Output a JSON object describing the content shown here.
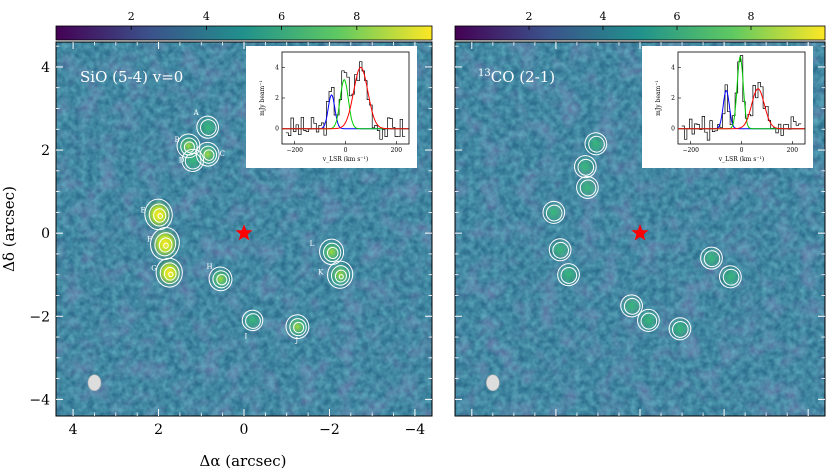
{
  "chart_data": [
    {
      "type": "heatmap",
      "title": "SiO (5-4) v=0",
      "xlabel": "Δα (arcsec)",
      "ylabel": "Δδ (arcsec)",
      "xlim": [
        4.4,
        -4.4
      ],
      "ylim": [
        -4.4,
        4.6
      ],
      "x_ticks": [
        "4",
        "2",
        "0",
        "−2",
        "−4"
      ],
      "y_ticks": [
        "4",
        "2",
        "0",
        "−2",
        "−4"
      ],
      "colorbar": {
        "range": [
          0,
          10
        ],
        "ticks": [
          "2",
          "4",
          "6",
          "8"
        ]
      },
      "colormap": [
        "#440154",
        "#3b528b",
        "#21918c",
        "#5ec962",
        "#fde725"
      ],
      "star": {
        "x": 0,
        "y": 0,
        "color": "#ff0000"
      },
      "beam": {
        "x": 3.5,
        "y": -3.6
      },
      "components": [
        {
          "label": "A",
          "x": 0.85,
          "y": 2.55,
          "peak": 4
        },
        {
          "label": "B",
          "x": 1.3,
          "y": 2.1,
          "peak": 5
        },
        {
          "label": "C",
          "x": 0.85,
          "y": 1.9,
          "peak": 5
        },
        {
          "label": "D",
          "x": 1.2,
          "y": 1.75,
          "peak": 4
        },
        {
          "label": "E",
          "x": 2.0,
          "y": 0.45,
          "peak": 9
        },
        {
          "label": "F",
          "x": 1.85,
          "y": -0.25,
          "peak": 10
        },
        {
          "label": "G",
          "x": 1.75,
          "y": -0.95,
          "peak": 8
        },
        {
          "label": "H",
          "x": 0.55,
          "y": -1.1,
          "peak": 5
        },
        {
          "label": "I",
          "x": -0.2,
          "y": -2.1,
          "peak": 3
        },
        {
          "label": "J",
          "x": -1.25,
          "y": -2.25,
          "peak": 5
        },
        {
          "label": "K",
          "x": -2.25,
          "y": -1.0,
          "peak": 7
        },
        {
          "label": "L",
          "x": -2.05,
          "y": -0.45,
          "peak": 6
        }
      ],
      "inset": {
        "xlabel": "v_LSR (km s⁻¹)",
        "ylabel": "mJy beam⁻¹",
        "xlim": [
          -250,
          250
        ],
        "ylim": [
          -1,
          5
        ],
        "x_ticks": [
          "−200",
          "0",
          "200"
        ],
        "y_ticks": [
          "0",
          "2",
          "4"
        ],
        "fits": [
          {
            "color": "#0000ff",
            "center": -55,
            "amp": 2.2,
            "width": 13
          },
          {
            "color": "#00cc00",
            "center": -5,
            "amp": 3.2,
            "width": 16
          },
          {
            "color": "#ff0000",
            "center": 60,
            "amp": 4.0,
            "width": 28
          }
        ]
      }
    },
    {
      "type": "heatmap",
      "title": "13CO (2-1)",
      "title_sup": "13",
      "title_main": "CO (2-1)",
      "xlim": [
        4.4,
        -4.4
      ],
      "ylim": [
        -4.4,
        4.6
      ],
      "colorbar": {
        "range": [
          0,
          10
        ],
        "ticks": [
          "2",
          "4",
          "6",
          "8"
        ]
      },
      "star": {
        "x": 0,
        "y": 0,
        "color": "#ff0000"
      },
      "beam": {
        "x": 3.5,
        "y": -3.6
      },
      "components": [
        {
          "x": 1.05,
          "y": 2.15
        },
        {
          "x": 1.3,
          "y": 1.6
        },
        {
          "x": 1.25,
          "y": 1.1
        },
        {
          "x": 2.05,
          "y": 0.5
        },
        {
          "x": 1.9,
          "y": -0.4
        },
        {
          "x": 1.7,
          "y": -1.0
        },
        {
          "x": -1.7,
          "y": -0.6
        },
        {
          "x": -2.15,
          "y": -1.05
        },
        {
          "x": -0.2,
          "y": -2.1
        },
        {
          "x": 0.2,
          "y": -1.75
        },
        {
          "x": -0.95,
          "y": -2.3
        }
      ],
      "inset": {
        "xlim": [
          -250,
          250
        ],
        "ylim": [
          -1,
          5
        ],
        "x_ticks": [
          "−200",
          "0",
          "200"
        ],
        "y_ticks": [
          "0",
          "2",
          "4"
        ],
        "fits": [
          {
            "color": "#0000ff",
            "center": -60,
            "amp": 2.5,
            "width": 12
          },
          {
            "color": "#00cc00",
            "center": -5,
            "amp": 4.7,
            "width": 12
          },
          {
            "color": "#ff0000",
            "center": 65,
            "amp": 2.6,
            "width": 25
          }
        ]
      }
    }
  ]
}
